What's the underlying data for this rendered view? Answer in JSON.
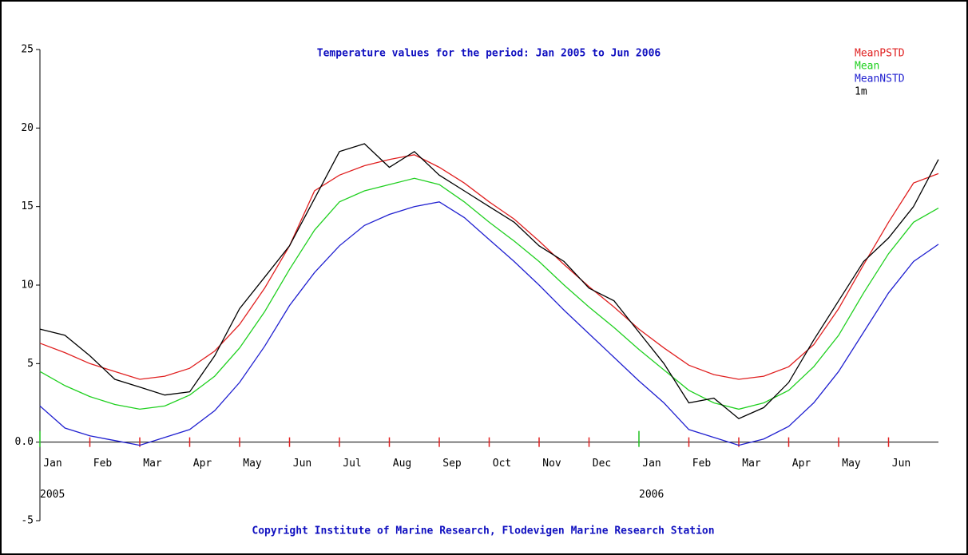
{
  "chart_data": {
    "type": "line",
    "title": "Temperature values for the period: Jan 2005 to Jun 2006",
    "footer": "Copyright Institute of Marine Research, Flodevigen Marine Research Station",
    "categories": [
      "Jan",
      null,
      "Feb",
      null,
      "Mar",
      null,
      "Apr",
      null,
      "May",
      null,
      "Jun",
      null,
      "Jul",
      null,
      "Aug",
      null,
      "Sep",
      null,
      "Oct",
      null,
      "Nov",
      null,
      "Dec",
      null,
      "Jan",
      null,
      "Feb",
      null,
      "Mar",
      null,
      "Apr",
      null,
      "May",
      null,
      "Jun",
      null,
      null
    ],
    "years": [
      "2005",
      null,
      null,
      null,
      null,
      null,
      null,
      null,
      null,
      null,
      null,
      null,
      null,
      null,
      null,
      null,
      null,
      null,
      null,
      null,
      null,
      null,
      null,
      null,
      "2006",
      null,
      null,
      null,
      null,
      null,
      null,
      null,
      null,
      null,
      null,
      null,
      null
    ],
    "ylim": [
      -5,
      25
    ],
    "yticks": [
      -5,
      {
        "value": 0,
        "label": "0.0"
      },
      5,
      10,
      15,
      20,
      25
    ],
    "series": [
      {
        "name": "MeanPSTD",
        "color": "#e02020",
        "values": [
          6.3,
          5.7,
          5.0,
          4.5,
          4.0,
          4.2,
          4.7,
          5.8,
          7.5,
          9.8,
          12.5,
          16.0,
          17.0,
          17.6,
          18.0,
          18.3,
          17.5,
          16.5,
          15.3,
          14.2,
          12.8,
          11.3,
          9.9,
          8.6,
          7.2,
          6.0,
          4.9,
          4.3,
          4.0,
          4.2,
          4.8,
          6.2,
          8.5,
          11.3,
          14.0,
          16.5,
          17.1
        ]
      },
      {
        "name": "Mean",
        "color": "#20d020",
        "values": [
          4.5,
          3.6,
          2.9,
          2.4,
          2.1,
          2.3,
          3.0,
          4.2,
          6.0,
          8.3,
          11.0,
          13.5,
          15.3,
          16.0,
          16.4,
          16.8,
          16.4,
          15.3,
          14.0,
          12.8,
          11.5,
          10.0,
          8.6,
          7.3,
          5.9,
          4.6,
          3.3,
          2.5,
          2.1,
          2.5,
          3.3,
          4.8,
          6.8,
          9.5,
          12.0,
          14.0,
          14.9
        ]
      },
      {
        "name": "MeanNSTD",
        "color": "#2020d0",
        "values": [
          2.3,
          0.9,
          0.4,
          0.1,
          -0.2,
          0.3,
          0.8,
          2.0,
          3.8,
          6.1,
          8.7,
          10.8,
          12.5,
          13.8,
          14.5,
          15.0,
          15.3,
          14.3,
          12.9,
          11.5,
          10.0,
          8.4,
          6.9,
          5.4,
          3.9,
          2.5,
          0.8,
          0.3,
          -0.2,
          0.2,
          1.0,
          2.5,
          4.5,
          7.0,
          9.5,
          11.5,
          12.6
        ]
      },
      {
        "name": "1m",
        "color": "#000000",
        "values": [
          7.2,
          6.8,
          5.5,
          4.0,
          3.5,
          3.0,
          3.2,
          5.5,
          8.5,
          10.5,
          12.5,
          15.5,
          18.5,
          19.0,
          17.5,
          18.5,
          17.0,
          16.0,
          15.0,
          14.0,
          12.5,
          11.5,
          9.8,
          9.0,
          7.0,
          5.0,
          2.5,
          2.8,
          1.5,
          2.2,
          3.8,
          6.5,
          9.0,
          11.5,
          13.0,
          15.0,
          18.0
        ]
      }
    ]
  }
}
